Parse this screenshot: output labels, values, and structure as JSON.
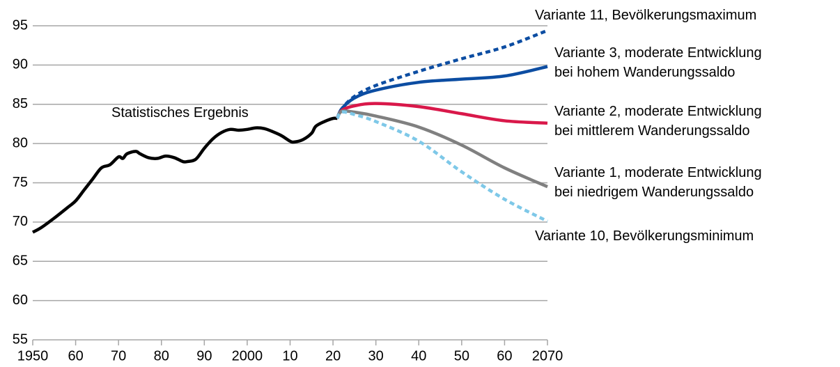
{
  "chart_data": {
    "type": "line",
    "xlim": [
      1950,
      2070
    ],
    "ylim": [
      55,
      95
    ],
    "yticks": [
      55,
      60,
      65,
      70,
      75,
      80,
      85,
      90,
      95
    ],
    "xticks": [
      {
        "value": 1950,
        "label": "1950"
      },
      {
        "value": 1960,
        "label": "60"
      },
      {
        "value": 1970,
        "label": "70"
      },
      {
        "value": 1980,
        "label": "80"
      },
      {
        "value": 1990,
        "label": "90"
      },
      {
        "value": 2000,
        "label": "2000"
      },
      {
        "value": 2010,
        "label": "10"
      },
      {
        "value": 2020,
        "label": "20"
      },
      {
        "value": 2030,
        "label": "30"
      },
      {
        "value": 2040,
        "label": "40"
      },
      {
        "value": 2050,
        "label": "50"
      },
      {
        "value": 2060,
        "label": "60"
      },
      {
        "value": 2070,
        "label": "2070"
      }
    ],
    "grid": true,
    "series": [
      {
        "name": "Statistisches Ergebnis",
        "color": "#000000",
        "dashed": false,
        "x": [
          1950,
          1952,
          1955,
          1958,
          1960,
          1962,
          1964,
          1966,
          1968,
          1970,
          1971,
          1972,
          1974,
          1975,
          1977,
          1979,
          1981,
          1983,
          1985,
          1986,
          1988,
          1990,
          1992,
          1994,
          1996,
          1998,
          2000,
          2002,
          2004,
          2006,
          2008,
          2010,
          2011,
          2013,
          2015,
          2016,
          2018,
          2020,
          2021
        ],
        "values": [
          68.7,
          69.3,
          70.5,
          71.8,
          72.7,
          74.1,
          75.5,
          76.9,
          77.3,
          78.3,
          78.1,
          78.7,
          79.0,
          78.7,
          78.2,
          78.1,
          78.4,
          78.2,
          77.7,
          77.7,
          78.0,
          79.4,
          80.6,
          81.4,
          81.8,
          81.7,
          81.8,
          82.0,
          81.9,
          81.5,
          81.0,
          80.3,
          80.2,
          80.5,
          81.3,
          82.2,
          82.8,
          83.2,
          83.2
        ]
      },
      {
        "name": "Variante 11, Bevölkerungsmaximum",
        "color": "#0c4da2",
        "dashed": true,
        "x": [
          2021,
          2022,
          2025,
          2030,
          2040,
          2050,
          2060,
          2070
        ],
        "values": [
          83.2,
          84.4,
          86.0,
          87.4,
          89.2,
          90.8,
          92.3,
          94.4
        ]
      },
      {
        "name": "Variante 3, moderate Entwicklung\nbei hohem Wanderungssaldo",
        "color": "#0c4da2",
        "dashed": false,
        "x": [
          2021,
          2022,
          2025,
          2030,
          2040,
          2050,
          2060,
          2070
        ],
        "values": [
          83.2,
          84.4,
          85.8,
          86.8,
          87.8,
          88.2,
          88.6,
          89.8
        ]
      },
      {
        "name": "Variante 2, moderate Entwicklung\nbei mittlerem Wanderungssaldo",
        "color": "#d9184a",
        "dashed": false,
        "x": [
          2021,
          2022,
          2025,
          2030,
          2040,
          2050,
          2060,
          2070
        ],
        "values": [
          83.2,
          84.2,
          84.8,
          85.1,
          84.7,
          83.8,
          82.9,
          82.6
        ]
      },
      {
        "name": "Variante 1, moderate Entwicklung\nbei niedrigem Wanderungssaldo",
        "color": "#808080",
        "dashed": false,
        "x": [
          2021,
          2022,
          2025,
          2030,
          2040,
          2050,
          2060,
          2070
        ],
        "values": [
          83.2,
          84.1,
          84.0,
          83.5,
          82.1,
          79.8,
          76.9,
          74.5
        ]
      },
      {
        "name": "Variante 10, Bevölkerungsminimum",
        "color": "#7ec8e8",
        "dashed": true,
        "x": [
          2021,
          2022,
          2025,
          2030,
          2040,
          2050,
          2060,
          2070
        ],
        "values": [
          83.2,
          84.0,
          83.7,
          82.8,
          80.3,
          76.4,
          72.9,
          70.1
        ]
      }
    ]
  }
}
